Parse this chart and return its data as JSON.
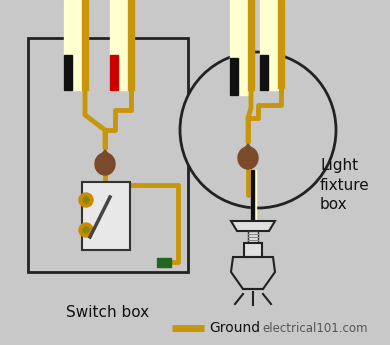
{
  "bg_color": "#c8c8c8",
  "ground_color": "#c8960a",
  "wire_white": "#ffffd0",
  "wire_black": "#111111",
  "wire_red": "#cc0000",
  "box_edge": "#222222",
  "connector_color": "#7a4a2a",
  "switch_label": "Switch box",
  "fixture_label": "Light\nfixture\nbox",
  "legend_label": "Ground",
  "credit": "electrical101.com",
  "green_screw": "#226622",
  "switch_screw_color": "#cc8800",
  "switch_body_color": "#e8e8e8",
  "switch_toggle_color": "#aaaaaa"
}
